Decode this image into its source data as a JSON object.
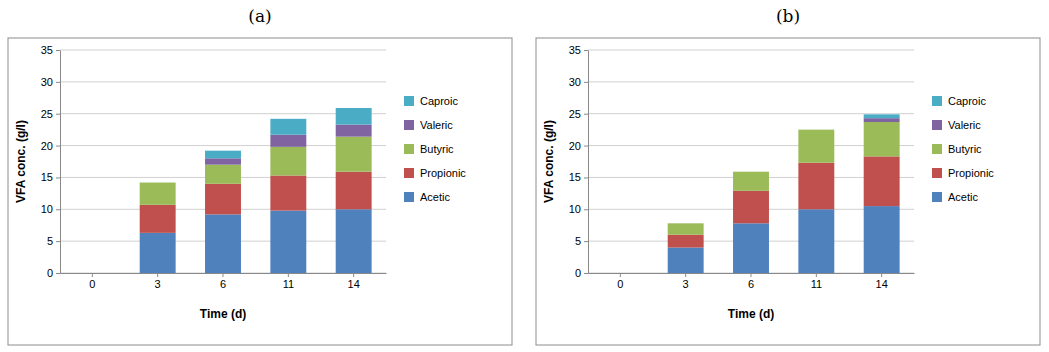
{
  "chart_data": [
    {
      "type": "bar",
      "title": "(a)",
      "stacked": true,
      "grid": true,
      "legend": "right",
      "x_label": "Time (d)",
      "y_label": "VFA conc. (g/l)",
      "categories": [
        "0",
        "3",
        "6",
        "11",
        "14"
      ],
      "ylim": [
        0,
        35
      ],
      "yticks": [
        0,
        5,
        10,
        15,
        20,
        25,
        30,
        35
      ],
      "series": [
        {
          "name": "Acetic",
          "color": "#4f81bd",
          "values": [
            0,
            6.3,
            9.2,
            9.8,
            10.0
          ]
        },
        {
          "name": "Propionic",
          "color": "#c0504d",
          "values": [
            0,
            4.4,
            4.8,
            5.5,
            5.9
          ]
        },
        {
          "name": "Butyric",
          "color": "#9bbb59",
          "values": [
            0,
            3.5,
            3.0,
            4.5,
            5.5
          ]
        },
        {
          "name": "Valeric",
          "color": "#8064a2",
          "values": [
            0,
            0,
            1.0,
            1.9,
            1.9
          ]
        },
        {
          "name": "Caproic",
          "color": "#4bacc6",
          "values": [
            0,
            0,
            1.2,
            2.5,
            2.6
          ]
        }
      ]
    },
    {
      "type": "bar",
      "title": "(b)",
      "stacked": true,
      "grid": true,
      "legend": "right",
      "x_label": "Time (d)",
      "y_label": "VFA conc. (g/l)",
      "categories": [
        "0",
        "3",
        "6",
        "11",
        "14"
      ],
      "ylim": [
        0,
        35
      ],
      "yticks": [
        0,
        5,
        10,
        15,
        20,
        25,
        30,
        35
      ],
      "series": [
        {
          "name": "Acetic",
          "color": "#4f81bd",
          "values": [
            0,
            4.0,
            7.8,
            10.0,
            10.5
          ]
        },
        {
          "name": "Propionic",
          "color": "#c0504d",
          "values": [
            0,
            2.0,
            5.1,
            7.3,
            7.8
          ]
        },
        {
          "name": "Butyric",
          "color": "#9bbb59",
          "values": [
            0,
            1.8,
            3.0,
            5.2,
            5.4
          ]
        },
        {
          "name": "Valeric",
          "color": "#8064a2",
          "values": [
            0,
            0,
            0,
            0,
            0.6
          ]
        },
        {
          "name": "Caproic",
          "color": "#4bacc6",
          "values": [
            0,
            0,
            0,
            0,
            0.6
          ]
        }
      ]
    }
  ]
}
